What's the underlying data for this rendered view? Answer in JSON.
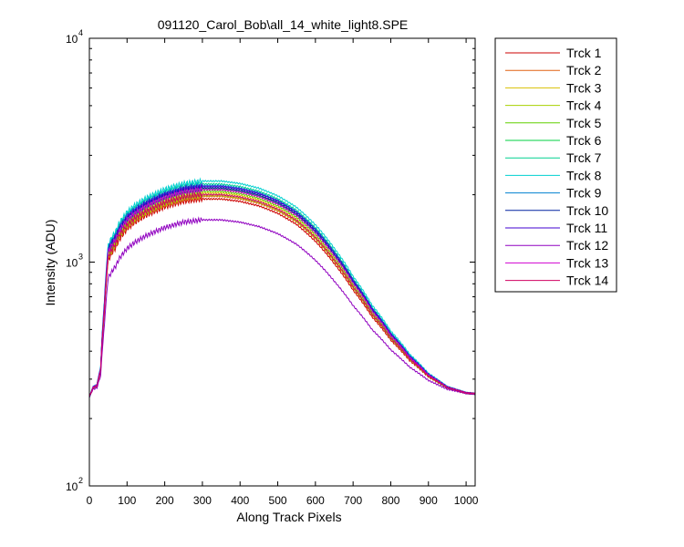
{
  "chart_data": {
    "type": "line",
    "title": "091120_Carol_Bob\\all_14_white_light8.SPE",
    "xlabel": "Along Track Pixels",
    "ylabel": "Intensity (ADU)",
    "xlim": [
      0,
      1024
    ],
    "ylim": [
      100,
      10000
    ],
    "yscale": "log",
    "grid": false,
    "legend_position": "outside-top-right",
    "x_ticks": [
      "0",
      "100",
      "200",
      "300",
      "400",
      "500",
      "600",
      "700",
      "800",
      "900",
      "1000"
    ],
    "y_ticks": [
      {
        "base": "10",
        "exp": "2",
        "value": 100
      },
      {
        "base": "10",
        "exp": "3",
        "value": 1000
      },
      {
        "base": "10",
        "exp": "4",
        "value": 10000
      }
    ],
    "x": [
      0,
      10,
      20,
      30,
      40,
      50,
      60,
      70,
      80,
      100,
      120,
      150,
      200,
      250,
      300,
      350,
      400,
      450,
      500,
      550,
      600,
      650,
      700,
      750,
      800,
      850,
      900,
      950,
      1000,
      1024
    ],
    "base_profile": [
      250,
      275,
      280,
      330,
      620,
      1070,
      1150,
      1220,
      1330,
      1480,
      1580,
      1700,
      1860,
      1970,
      2020,
      2020,
      1970,
      1880,
      1740,
      1550,
      1300,
      1030,
      780,
      590,
      460,
      370,
      310,
      275,
      260,
      258
    ],
    "series": [
      {
        "name": "Trck 1",
        "color": "#cc0000",
        "scale": 0.94
      },
      {
        "name": "Trck 2",
        "color": "#e06010",
        "scale": 0.97
      },
      {
        "name": "Trck 3",
        "color": "#d8c000",
        "scale": 1.01
      },
      {
        "name": "Trck 4",
        "color": "#a8d000",
        "scale": 0.98
      },
      {
        "name": "Trck 5",
        "color": "#60d000",
        "scale": 1.03
      },
      {
        "name": "Trck 6",
        "color": "#00d040",
        "scale": 1.06
      },
      {
        "name": "Trck 7",
        "color": "#00d090",
        "scale": 1.12
      },
      {
        "name": "Trck 8",
        "color": "#00d0d0",
        "scale": 1.16
      },
      {
        "name": "Trck 9",
        "color": "#0080d0",
        "scale": 1.1
      },
      {
        "name": "Trck 10",
        "color": "#0020a0",
        "scale": 1.07
      },
      {
        "name": "Trck 11",
        "color": "#4000d0",
        "scale": 1.09
      },
      {
        "name": "Trck 12",
        "color": "#9000c0",
        "scale": 0.73
      },
      {
        "name": "Trck 13",
        "color": "#d000d0",
        "scale": 1.05
      },
      {
        "name": "Trck 14",
        "color": "#d00060",
        "scale": 0.99
      }
    ]
  }
}
